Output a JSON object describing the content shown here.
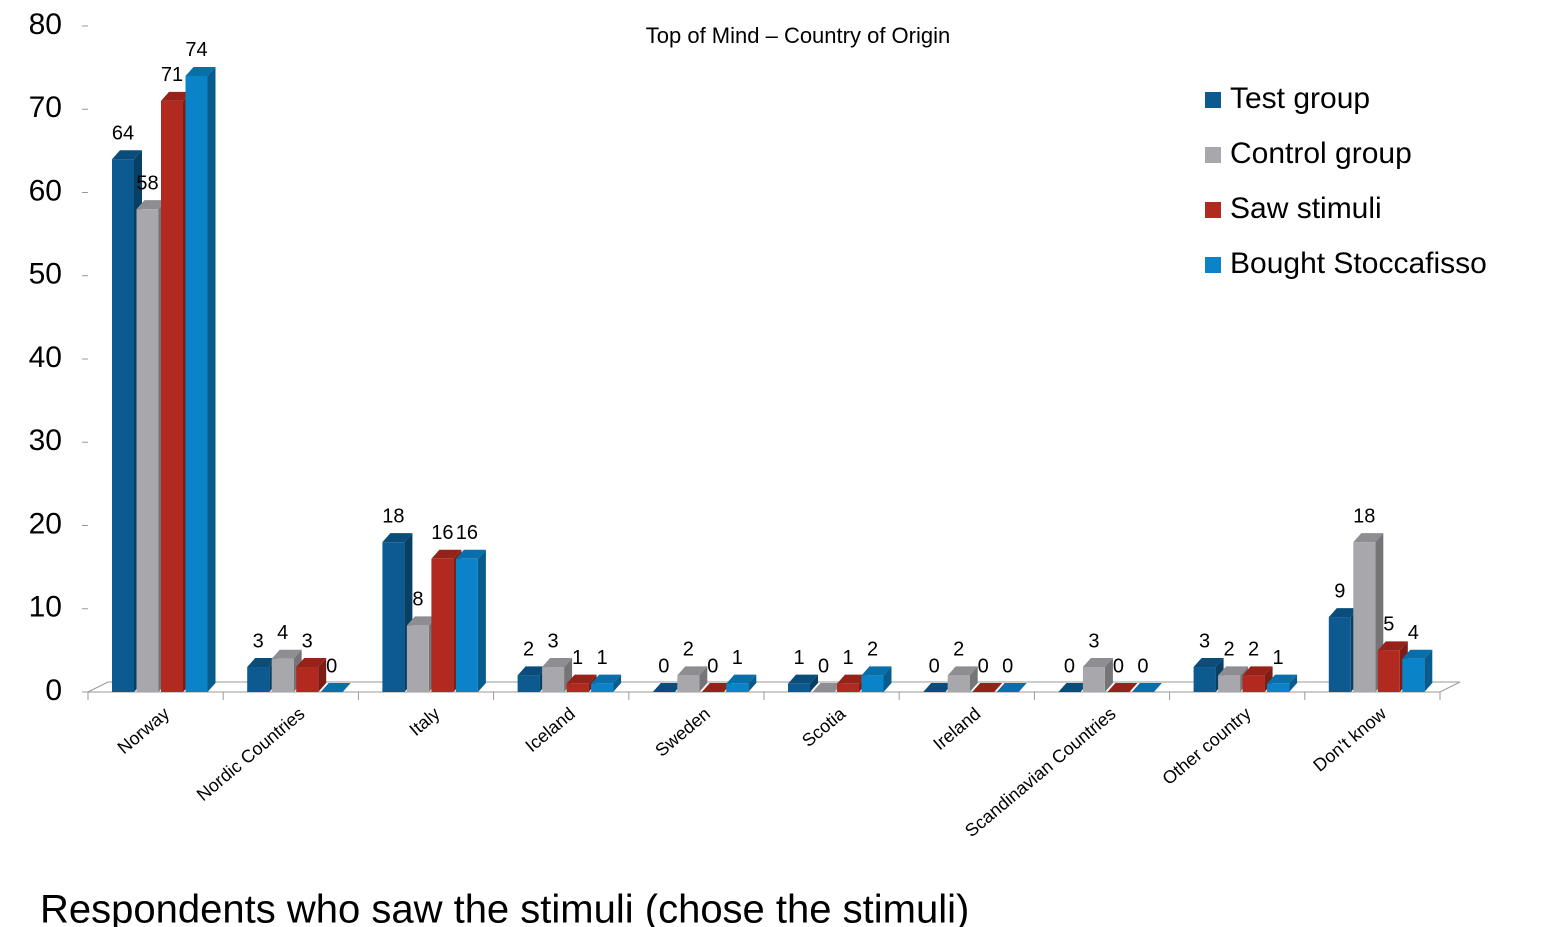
{
  "chart_data": {
    "type": "bar3d",
    "title": "Top of Mind – Country of Origin",
    "footer": "Respondents who saw the stimuli (chose the stimuli)",
    "categories": [
      "Norway",
      "Nordic Countries",
      "Italy",
      "Iceland",
      "Sweden",
      "Scotia",
      "Ireland",
      "Scandinavian Countries",
      "Other country",
      "Don't know"
    ],
    "series": [
      {
        "name": "Test group",
        "color": "#0c5a8f",
        "values": [
          64,
          3,
          18,
          2,
          0,
          1,
          0,
          0,
          3,
          9
        ]
      },
      {
        "name": "Control group",
        "color": "#a7a7ac",
        "values": [
          58,
          4,
          8,
          3,
          2,
          0,
          2,
          3,
          2,
          18
        ]
      },
      {
        "name": "Saw stimuli",
        "color": "#b1291f",
        "values": [
          71,
          3,
          16,
          1,
          0,
          1,
          0,
          0,
          2,
          5
        ]
      },
      {
        "name": "Bought Stoccafisso",
        "color": "#0a83c9",
        "values": [
          74,
          0,
          16,
          1,
          1,
          2,
          0,
          0,
          1,
          4
        ]
      }
    ],
    "ylim": [
      0,
      80
    ],
    "yticks": [
      0,
      10,
      20,
      30,
      40,
      50,
      60,
      70,
      80
    ],
    "legend": "right"
  }
}
